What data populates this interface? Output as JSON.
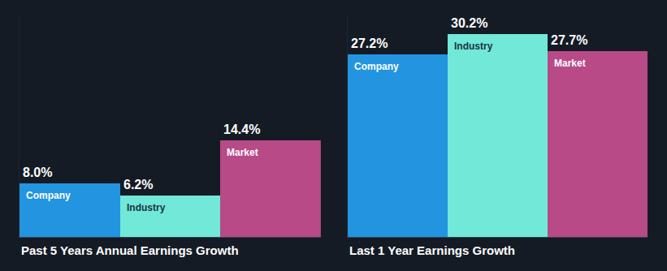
{
  "chart_data": [
    {
      "type": "bar",
      "title": "Past 5 Years Annual Earnings Growth",
      "categories": [
        "Company",
        "Industry",
        "Market"
      ],
      "values": [
        8.0,
        6.2,
        14.4
      ],
      "value_labels": [
        "8.0%",
        "6.2%",
        "14.4%"
      ],
      "colors": [
        "#2394df",
        "#71e8d8",
        "#b84a87"
      ],
      "ylim": [
        0,
        33
      ],
      "yticks": [
        0
      ],
      "grid": false,
      "data_labels": true,
      "tick_labels": false
    },
    {
      "type": "bar",
      "title": "Last 1 Year Earnings Growth",
      "categories": [
        "Company",
        "Industry",
        "Market"
      ],
      "values": [
        27.2,
        30.2,
        27.7
      ],
      "value_labels": [
        "27.2%",
        "30.2%",
        "27.7%"
      ],
      "colors": [
        "#2394df",
        "#71e8d8",
        "#b84a87"
      ],
      "ylim": [
        0,
        33
      ],
      "yticks": [
        0
      ],
      "grid": false,
      "data_labels": true,
      "tick_labels": false
    }
  ]
}
